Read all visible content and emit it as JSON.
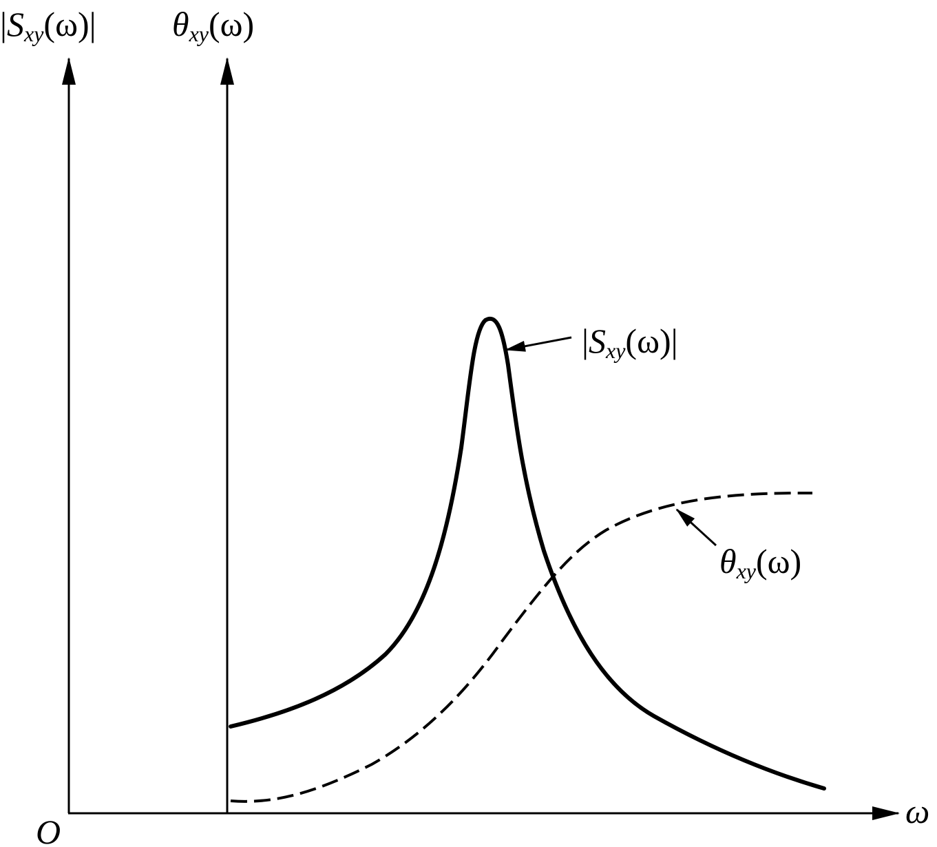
{
  "axes": {
    "left_label": {
      "open": "|",
      "symbol": "S",
      "sub": "xy",
      "arg": "(ω)|"
    },
    "right_label": {
      "symbol": "θ",
      "sub": "xy",
      "arg": "(ω)"
    },
    "origin": "O",
    "x_label": "ω"
  },
  "curves": {
    "magnitude": {
      "open": "|",
      "symbol": "S",
      "sub": "xy",
      "arg": "(ω)|"
    },
    "phase": {
      "symbol": "θ",
      "sub": "xy",
      "arg": "(ω)"
    }
  }
}
